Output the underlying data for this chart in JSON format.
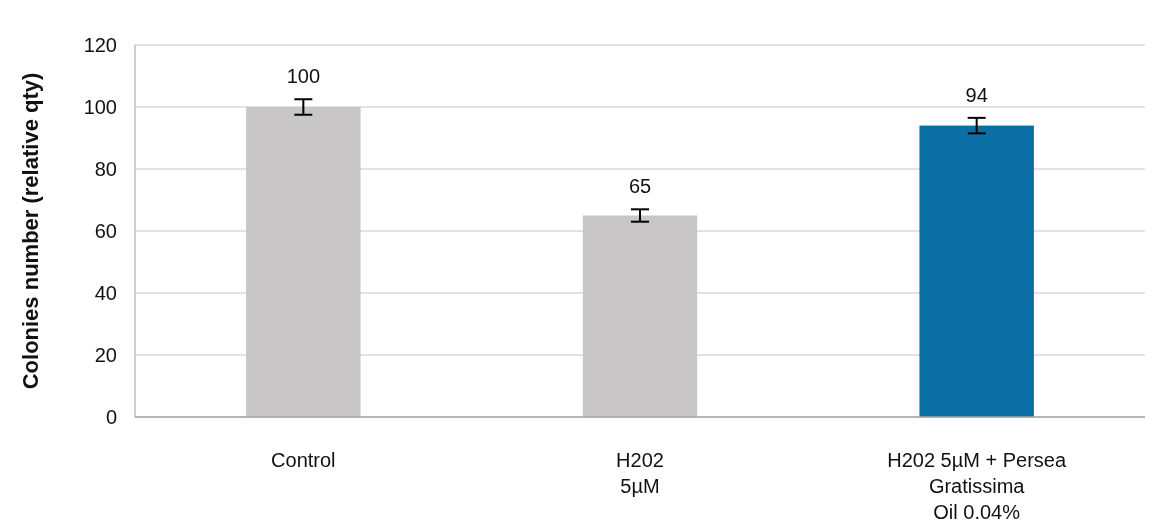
{
  "chart_data": {
    "type": "bar",
    "ylabel": "Colonies number (relative qty)",
    "categories": [
      "Control",
      "H202\n5µM",
      "H202 5µM + Persea\nGratissima\nOil 0.04%"
    ],
    "values": [
      100,
      65,
      94
    ],
    "colors": [
      "#c8c6c7",
      "#c8c6c7",
      "#0b6fa6"
    ],
    "errors": [
      2.5,
      2,
      2.5
    ],
    "data_labels": true,
    "ylim": [
      0,
      120
    ],
    "yticks": [
      0,
      20,
      40,
      60,
      80,
      100,
      120
    ],
    "grid": "y"
  }
}
